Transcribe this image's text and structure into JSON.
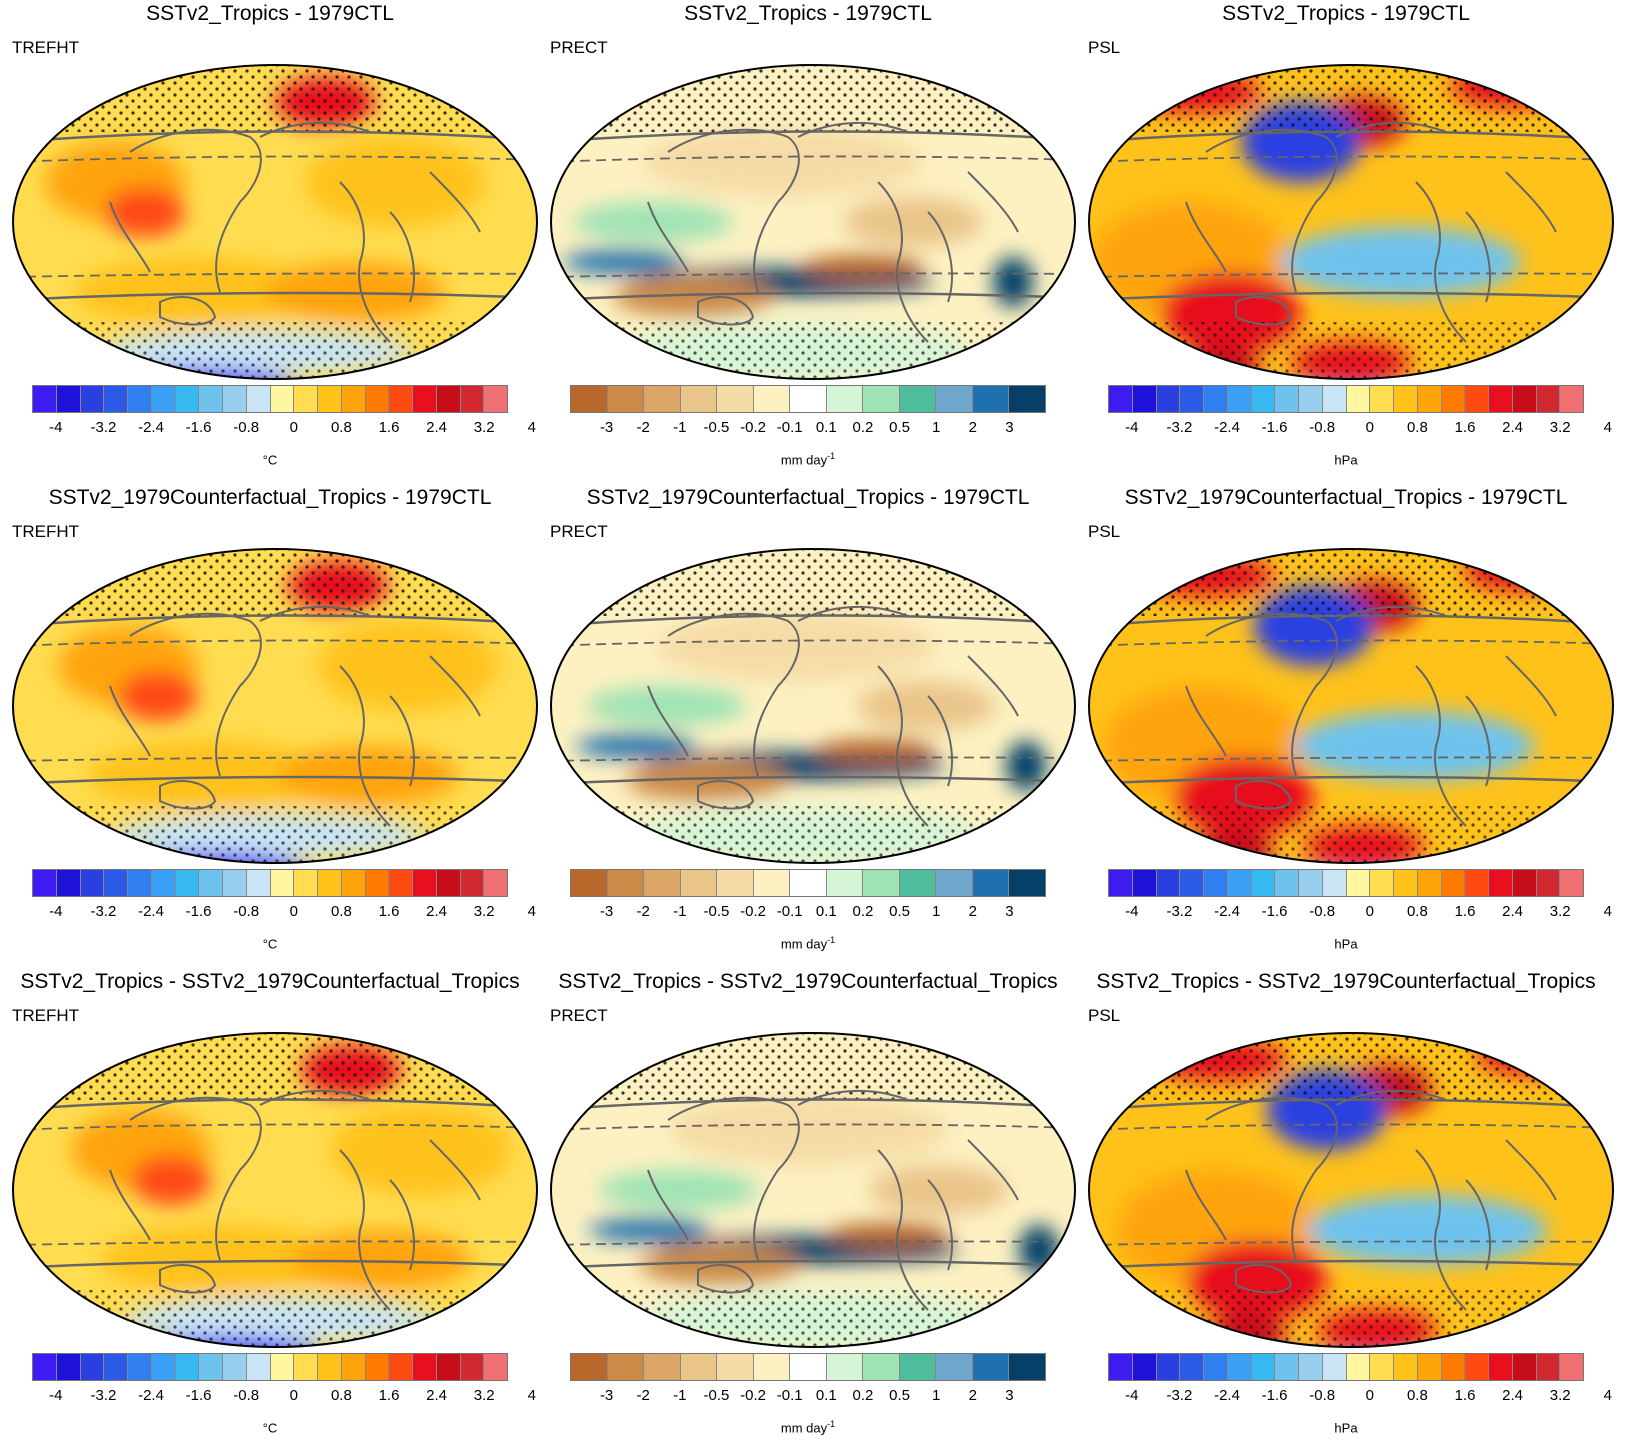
{
  "rows": [
    {
      "title": "SSTv2_Tropics - 1979CTL"
    },
    {
      "title": "SSTv2_1979Counterfactual_Tropics - 1979CTL"
    },
    {
      "title": "SSTv2_Tropics - SSTv2_1979Counterfactual_Tropics"
    }
  ],
  "columns": [
    {
      "variable": "TREFHT",
      "unit": "°C",
      "unit_sup": "",
      "scale": "temp"
    },
    {
      "variable": "PRECT",
      "unit": "mm day",
      "unit_sup": "-1",
      "scale": "precip"
    },
    {
      "variable": "PSL",
      "unit": "hPa",
      "unit_sup": "",
      "scale": "psl"
    }
  ],
  "scales": {
    "temp": {
      "colors": [
        "#3c1cf0",
        "#1e12d8",
        "#2a3fe0",
        "#2b5ae6",
        "#2f7ff0",
        "#3aa0f5",
        "#38b8f0",
        "#6ec3ee",
        "#98cfee",
        "#c8e4f5",
        "#fff6a0",
        "#ffdc50",
        "#ffc21a",
        "#ffa40a",
        "#ff7a00",
        "#ff4a12",
        "#e8101e",
        "#c80d1a",
        "#d22830",
        "#ee7070"
      ],
      "tick_labels": [
        "-4",
        "-3.2",
        "-2.4",
        "-1.6",
        "-0.8",
        "0",
        "0.8",
        "1.6",
        "2.4",
        "3.2",
        "4"
      ]
    },
    "psl": {
      "colors": [
        "#3c1cf0",
        "#1e12d8",
        "#2a3fe0",
        "#2b5ae6",
        "#2f7ff0",
        "#3aa0f5",
        "#38b8f0",
        "#6ec3ee",
        "#98cfee",
        "#c8e4f5",
        "#fff6a0",
        "#ffdc50",
        "#ffc21a",
        "#ffa40a",
        "#ff7a00",
        "#ff4a12",
        "#e8101e",
        "#c80d1a",
        "#d22830",
        "#ee7070"
      ],
      "tick_labels": [
        "-4",
        "-3.2",
        "-2.4",
        "-1.6",
        "-0.8",
        "0",
        "0.8",
        "1.6",
        "2.4",
        "3.2",
        "4"
      ]
    },
    "precip": {
      "colors": [
        "#b8682a",
        "#cb8a48",
        "#dba666",
        "#eac58a",
        "#f5dca6",
        "#fdf1c2",
        "#ffffff",
        "#d6f5d6",
        "#9ee3b4",
        "#4fbd9c",
        "#6ea6cc",
        "#1f70ae",
        "#063f68"
      ],
      "tick_labels": [
        "-3",
        "-2",
        "-1",
        "-0.5",
        "-0.2",
        "-0.1",
        "0.1",
        "0.2",
        "0.5",
        "1",
        "2",
        "3"
      ]
    }
  }
}
